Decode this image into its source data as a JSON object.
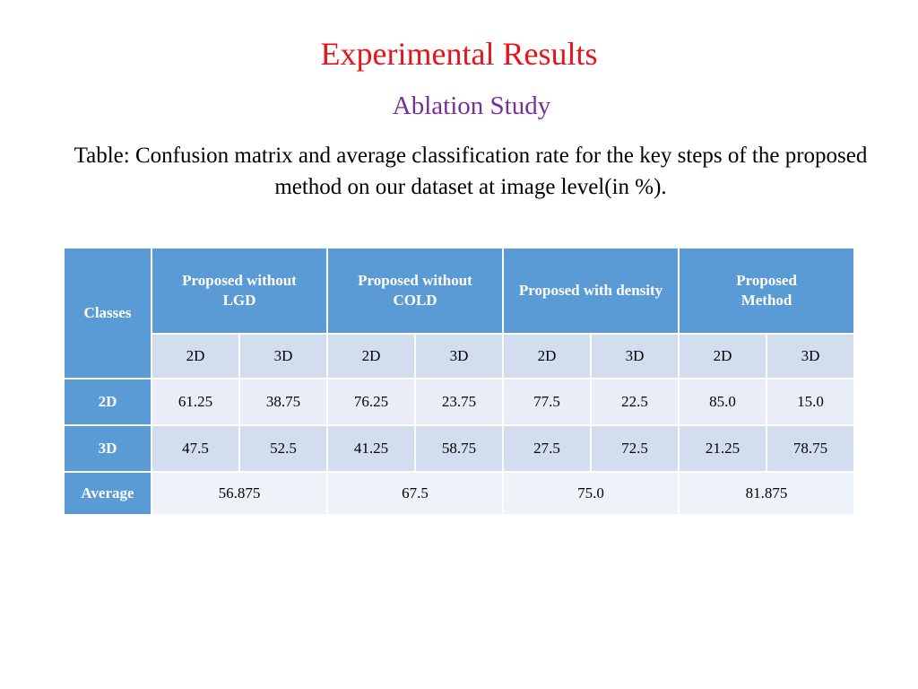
{
  "slide": {
    "title": "Experimental Results",
    "subtitle": "Ablation Study",
    "caption": "Table: Confusion matrix and average classification rate for the key steps of the proposed method on our dataset at image level(in %).",
    "colors": {
      "title": "#e8141c",
      "subtitle": "#7a2e9c",
      "header_fill": "#5b9bd5",
      "subheader_fill": "#d2def0",
      "cell_fill": "#e8edf7"
    }
  },
  "table": {
    "corner_label": "Classes",
    "methods": [
      "Proposed without LGD",
      "Proposed without COLD",
      "Proposed with density",
      "Proposed Method"
    ],
    "class_columns": [
      "2D",
      "3D"
    ],
    "rows": [
      {
        "label": "2D",
        "values": [
          "61.25",
          "38.75",
          "76.25",
          "23.75",
          "77.5",
          "22.5",
          "85.0",
          "15.0"
        ]
      },
      {
        "label": "3D",
        "values": [
          "47.5",
          "52.5",
          "41.25",
          "58.75",
          "27.5",
          "72.5",
          "21.25",
          "78.75"
        ]
      }
    ],
    "average_label": "Average",
    "averages": [
      "56.875",
      "67.5",
      "75.0",
      "81.875"
    ]
  }
}
